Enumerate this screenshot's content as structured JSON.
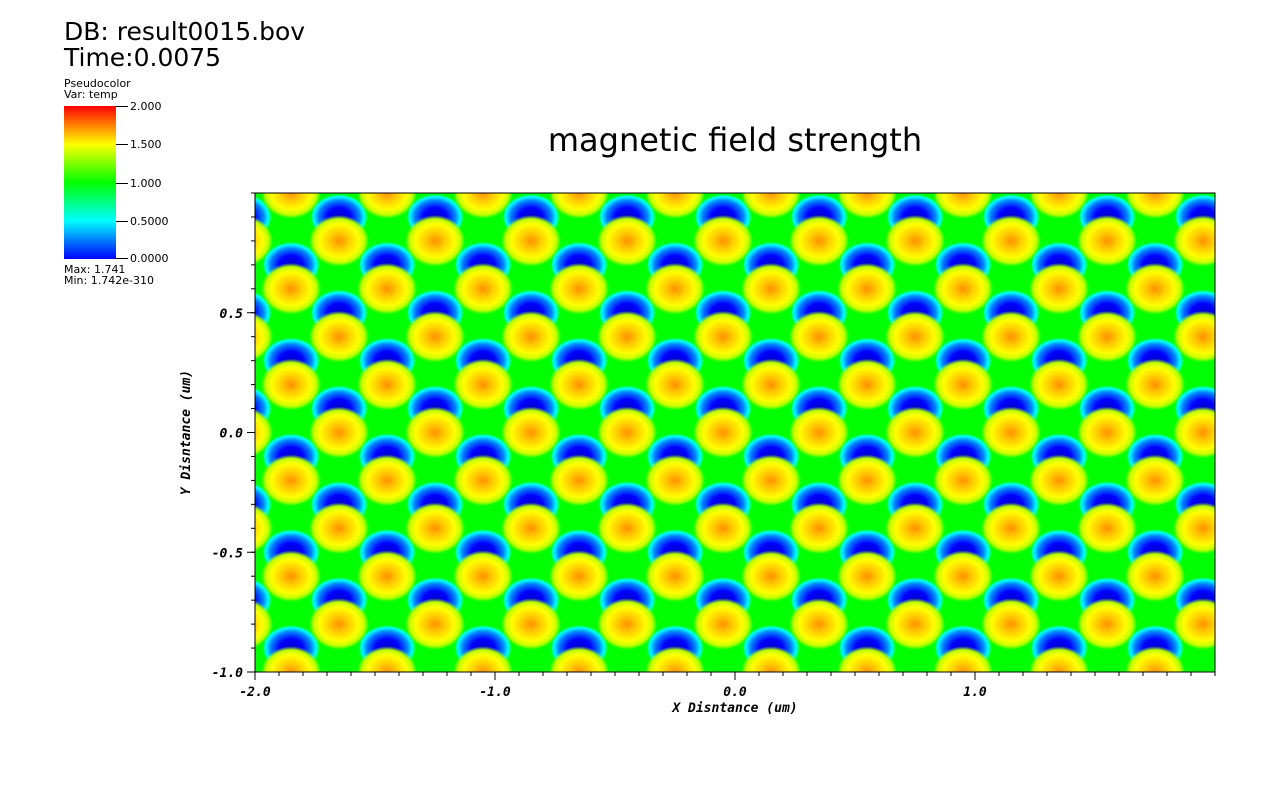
{
  "header": {
    "db_label": "DB: result0015.bov",
    "time_label": "Time:0.0075"
  },
  "legend": {
    "title": "Pseudocolor",
    "var_label": "Var: temp",
    "tick_labels": [
      "2.000",
      "1.500",
      "1.000",
      "0.5000",
      "0.0000"
    ],
    "tick_values": [
      2.0,
      1.5,
      1.0,
      0.5,
      0.0
    ],
    "max_label": "Max:  1.741",
    "min_label": "Min:  1.742e-310",
    "colormap": [
      "#0000ff",
      "#00ffff",
      "#00ff00",
      "#ffff00",
      "#ff0000"
    ]
  },
  "chart_data": {
    "type": "heatmap",
    "title": "magnetic field strength",
    "xlabel": "X Disntance (um)",
    "ylabel": "Y Disntance (um)",
    "xlim": [
      -2.0,
      2.0
    ],
    "ylim": [
      -1.0,
      1.0
    ],
    "x_ticks": [
      -2.0,
      -1.0,
      0.0,
      1.0
    ],
    "x_tick_labels": [
      "-2.0",
      "-1.0",
      "0.0",
      "1.0"
    ],
    "y_ticks": [
      -1.0,
      -0.5,
      0.0,
      0.5
    ],
    "y_tick_labels": [
      "-1.0",
      "-0.5",
      "0.0",
      "0.5"
    ],
    "value_range": [
      0.0,
      2.0
    ],
    "data_max": 1.741,
    "data_min": 1.742e-310,
    "pattern": "periodic cellular (hexagonal) lattice of high and low values",
    "period_x_um": 0.4,
    "period_y_um": 0.4
  }
}
